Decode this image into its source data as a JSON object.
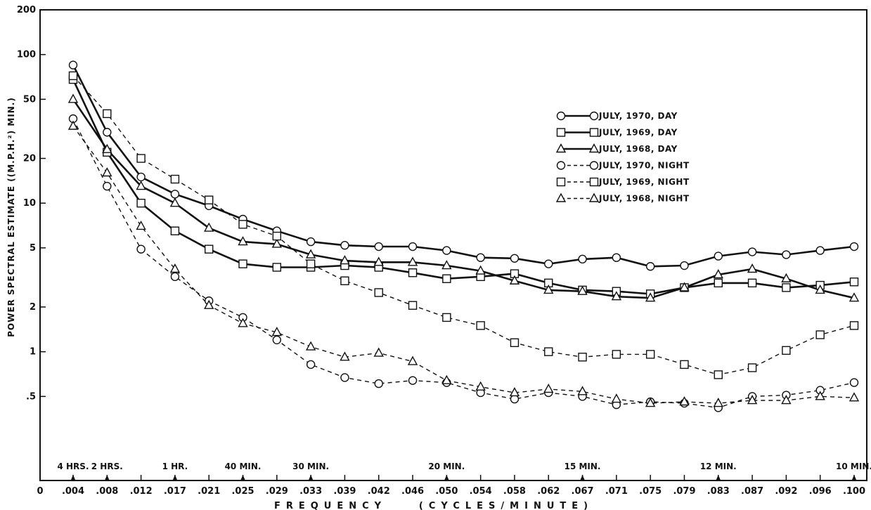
{
  "chart_data": {
    "type": "line",
    "xlabel": "FREQUENCY (CYCLES/MINUTE)",
    "ylabel": "POWER SPECTRAL ESTIMATE ((M.P.H.²) MIN.)",
    "yscale": "log",
    "ylim": [
      0.1,
      200
    ],
    "y_ticks": [
      {
        "value": 200,
        "label": "200"
      },
      {
        "value": 100,
        "label": "100"
      },
      {
        "value": 50,
        "label": "50"
      },
      {
        "value": 20,
        "label": "20"
      },
      {
        "value": 10,
        "label": "10"
      },
      {
        "value": 5,
        "label": "5"
      },
      {
        "value": 2,
        "label": "2"
      },
      {
        "value": 1,
        "label": "1"
      },
      {
        "value": 0.5,
        "label": ".5"
      }
    ],
    "x_origin_label": "0",
    "x_ticks": [
      ".004",
      ".008",
      ".012",
      ".017",
      ".021",
      ".025",
      ".029",
      ".033",
      ".039",
      ".042",
      ".046",
      ".050",
      ".054",
      ".058",
      ".062",
      ".067",
      ".071",
      ".075",
      ".079",
      ".083",
      ".087",
      ".092",
      ".096",
      ".100"
    ],
    "period_labels": [
      {
        "label": "4 HRS.",
        "at_index": 0
      },
      {
        "label": "2 HRS.",
        "at_index": 1
      },
      {
        "label": "1 HR.",
        "at_index": 3
      },
      {
        "label": "40 MIN.",
        "at_index": 5
      },
      {
        "label": "30 MIN.",
        "at_index": 7
      },
      {
        "label": "20 MIN.",
        "at_index": 11
      },
      {
        "label": "15 MIN.",
        "at_index": 15
      },
      {
        "label": "12 MIN.",
        "at_index": 19
      },
      {
        "label": "10 MIN.",
        "at_index": 23
      }
    ],
    "legend_position": "upper-right",
    "series": [
      {
        "name": "JULY, 1970, DAY",
        "marker": "circle",
        "dash": "solid",
        "values": [
          85,
          30,
          15,
          11.5,
          9.6,
          7.8,
          6.5,
          5.5,
          5.2,
          5.1,
          5.1,
          4.8,
          4.3,
          4.25,
          3.9,
          4.2,
          4.3,
          3.75,
          3.8,
          4.4,
          4.7,
          4.5,
          4.8,
          5.1
        ]
      },
      {
        "name": "JULY, 1969, DAY",
        "marker": "square",
        "dash": "solid",
        "values": [
          68,
          22,
          10,
          6.5,
          4.9,
          3.9,
          3.7,
          3.7,
          3.8,
          3.7,
          3.4,
          3.1,
          3.2,
          3.35,
          2.9,
          2.6,
          2.55,
          2.45,
          2.7,
          2.9,
          2.9,
          2.7,
          2.8,
          2.95
        ]
      },
      {
        "name": "JULY, 1968, DAY",
        "marker": "triangle",
        "dash": "solid",
        "values": [
          50,
          23,
          13,
          10,
          6.8,
          5.5,
          5.3,
          4.5,
          4.1,
          4.0,
          4.0,
          3.8,
          3.5,
          3.0,
          2.6,
          2.55,
          2.35,
          2.3,
          2.7,
          3.3,
          3.6,
          3.1,
          2.6,
          2.3
        ]
      },
      {
        "name": "JULY, 1970, NIGHT",
        "marker": "circle",
        "dash": "dashed",
        "values": [
          37,
          13,
          4.9,
          3.2,
          2.2,
          1.7,
          1.2,
          0.82,
          0.67,
          0.61,
          0.64,
          0.62,
          0.53,
          0.48,
          0.53,
          0.5,
          0.44,
          0.46,
          0.45,
          0.42,
          0.5,
          0.51,
          0.55,
          0.62
        ]
      },
      {
        "name": "JULY, 1969, NIGHT",
        "marker": "square",
        "dash": "dashed",
        "values": [
          72,
          40,
          20,
          14.5,
          10.5,
          7.2,
          6.0,
          3.9,
          3.0,
          2.5,
          2.05,
          1.7,
          1.5,
          1.15,
          1.0,
          0.92,
          0.96,
          0.96,
          0.82,
          0.7,
          0.78,
          1.02,
          1.3,
          1.5
        ]
      },
      {
        "name": "JULY, 1968, NIGHT",
        "marker": "triangle",
        "dash": "dashed",
        "values": [
          33,
          16,
          7.0,
          3.6,
          2.05,
          1.55,
          1.35,
          1.08,
          0.92,
          0.98,
          0.86,
          0.64,
          0.58,
          0.53,
          0.56,
          0.54,
          0.48,
          0.45,
          0.46,
          0.45,
          0.47,
          0.47,
          0.5,
          0.49
        ]
      }
    ]
  }
}
